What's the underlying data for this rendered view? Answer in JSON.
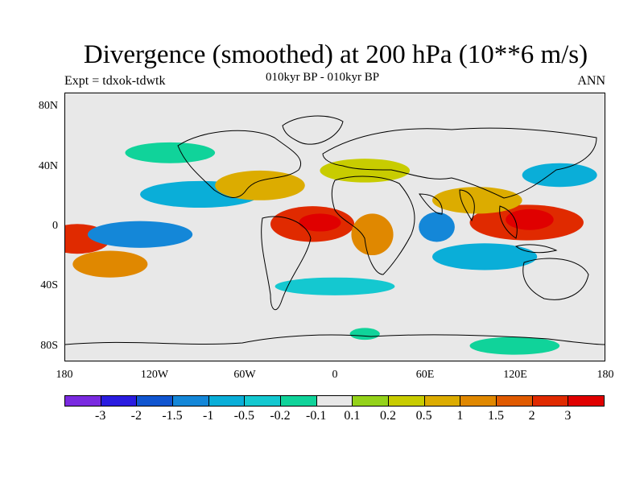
{
  "figure": {
    "title": "Divergence (smoothed) at 200 hPa (10**6 m/s)",
    "subtitle": "010kyr BP - 010kyr BP",
    "experiment": "Expt = tdxok-tdwtk",
    "season": "ANN",
    "background_color": "#e8e8e8"
  },
  "axes": {
    "y_ticks": [
      {
        "label": "80N",
        "lat": 80
      },
      {
        "label": "40N",
        "lat": 40
      },
      {
        "label": "0",
        "lat": 0
      },
      {
        "label": "40S",
        "lat": -40
      },
      {
        "label": "80S",
        "lat": -80
      }
    ],
    "x_ticks": [
      {
        "label": "180",
        "lon": -180
      },
      {
        "label": "120W",
        "lon": -120
      },
      {
        "label": "60W",
        "lon": -60
      },
      {
        "label": "0",
        "lon": 0
      },
      {
        "label": "60E",
        "lon": 60
      },
      {
        "label": "120E",
        "lon": 120
      },
      {
        "label": "180",
        "lon": 180
      }
    ],
    "lon_range": [
      -180,
      180
    ],
    "lat_range": [
      -90,
      90
    ]
  },
  "chart_data": {
    "type": "heatmap",
    "title": "Divergence (smoothed) at 200 hPa (10**6 m/s)",
    "projection": "cylindrical equidistant",
    "levels": [
      "-3",
      "-2",
      "-1.5",
      "-1",
      "-0.5",
      "-0.2",
      "-0.1",
      "0.1",
      "0.2",
      "0.5",
      "1",
      "1.5",
      "2",
      "3"
    ],
    "colors": [
      "#7a2ae0",
      "#2a1ce0",
      "#1055d0",
      "#1487d8",
      "#0aaed8",
      "#14c8d0",
      "#10d39a",
      "#e8e8e8",
      "#94d21a",
      "#c8cc00",
      "#dcac00",
      "#e08800",
      "#e05a00",
      "#e02a00",
      "#e00000"
    ],
    "blobs": [
      {
        "lon": -15,
        "lat": 2,
        "rx": 28,
        "ry": 12,
        "color_index": 13
      },
      {
        "lon": -10,
        "lat": 3,
        "rx": 14,
        "ry": 6,
        "color_index": 14
      },
      {
        "lon": -172,
        "lat": -8,
        "rx": 22,
        "ry": 10,
        "color_index": 13
      },
      {
        "lon": 128,
        "lat": 3,
        "rx": 38,
        "ry": 12,
        "color_index": 13
      },
      {
        "lon": 130,
        "lat": 5,
        "rx": 16,
        "ry": 7,
        "color_index": 14
      },
      {
        "lon": 25,
        "lat": -5,
        "rx": 14,
        "ry": 14,
        "color_index": 11
      },
      {
        "lon": 68,
        "lat": 0,
        "rx": 7,
        "ry": 6,
        "color_index": 1
      },
      {
        "lon": 68,
        "lat": 0,
        "rx": 12,
        "ry": 10,
        "color_index": 3
      },
      {
        "lon": -130,
        "lat": -5,
        "rx": 35,
        "ry": 9,
        "color_index": 3
      },
      {
        "lon": -90,
        "lat": 22,
        "rx": 40,
        "ry": 9,
        "color_index": 4
      },
      {
        "lon": -150,
        "lat": -25,
        "rx": 25,
        "ry": 9,
        "color_index": 11
      },
      {
        "lon": -50,
        "lat": 28,
        "rx": 30,
        "ry": 10,
        "color_index": 10
      },
      {
        "lon": 20,
        "lat": 38,
        "rx": 30,
        "ry": 8,
        "color_index": 9
      },
      {
        "lon": 95,
        "lat": 18,
        "rx": 30,
        "ry": 9,
        "color_index": 10
      },
      {
        "lon": 100,
        "lat": -20,
        "rx": 35,
        "ry": 9,
        "color_index": 4
      },
      {
        "lon": 150,
        "lat": 35,
        "rx": 25,
        "ry": 8,
        "color_index": 4
      },
      {
        "lon": -110,
        "lat": 50,
        "rx": 30,
        "ry": 7,
        "color_index": 6
      },
      {
        "lon": 0,
        "lat": -40,
        "rx": 40,
        "ry": 6,
        "color_index": 5
      },
      {
        "lon": 120,
        "lat": -80,
        "rx": 30,
        "ry": 6,
        "color_index": 6
      },
      {
        "lon": 20,
        "lat": -72,
        "rx": 10,
        "ry": 4,
        "color_index": 6
      }
    ]
  },
  "colorbar": {
    "labels": [
      "-3",
      "-2",
      "-1.5",
      "-1",
      "-0.5",
      "-0.2",
      "-0.1",
      "0.1",
      "0.2",
      "0.5",
      "1",
      "1.5",
      "2",
      "3"
    ]
  }
}
